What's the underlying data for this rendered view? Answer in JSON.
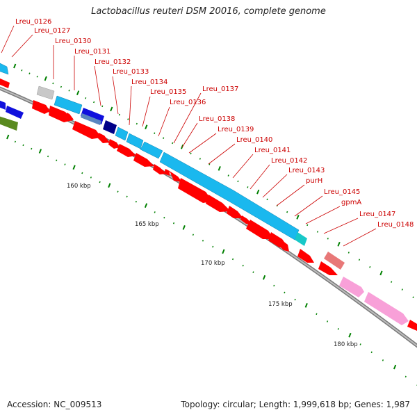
{
  "title": "Lactobacillus reuteri DSM 20016, complete genome",
  "accession_text": "Accession: NC_009513",
  "summary_text": "Topology: circular; Length: 1,999,618 bp; Genes: 1,987",
  "ruler": {
    "labels": [
      "160 kbp",
      "165 kbp",
      "170 kbp",
      "175 kbp",
      "180 kbp"
    ]
  },
  "gene_labels": [
    "Lreu_0126",
    "Lreu_0127",
    "Lreu_0130",
    "Lreu_0131",
    "Lreu_0132",
    "Lreu_0133",
    "Lreu_0134",
    "Lreu_0135",
    "Lreu_0136",
    "Lreu_0137",
    "Lreu_0138",
    "Lreu_0139",
    "Lreu_0140",
    "Lreu_0141",
    "Lreu_0142",
    "Lreu_0143",
    "purH",
    "Lreu_0145",
    "gpmA",
    "Lreu_0147",
    "Lreu_0148"
  ],
  "colors": {
    "cds_red": "#ff0000",
    "label_red": "#cc0000",
    "cyan": "#1ab8ee",
    "blue": "#1010dd",
    "navy": "#000088",
    "teal": "#18c8c8",
    "salmon": "#e87878",
    "pink": "#f8a0d8",
    "gray_box": "#c8c8c8",
    "olive": "#5a8a20",
    "steel": "#5a86c0",
    "tick_green": "#008000",
    "backbone": "#888888"
  }
}
